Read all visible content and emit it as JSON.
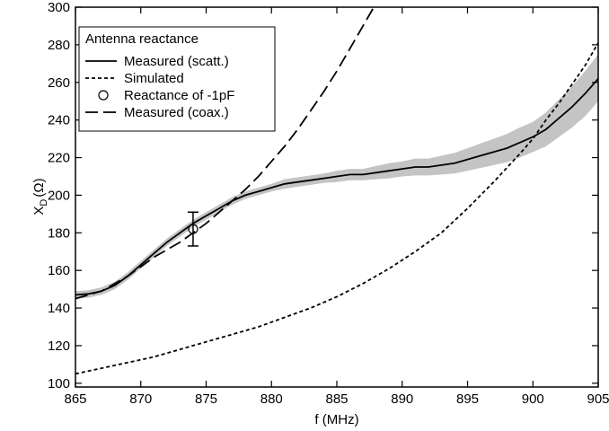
{
  "chart_data": {
    "type": "line",
    "xlabel": "f (MHz)",
    "ylabel_main": "X",
    "ylabel_sub": "D",
    "ylabel_unit": "(Ω)",
    "xlim": [
      865,
      905
    ],
    "ylim": [
      98,
      300
    ],
    "xticks": [
      865,
      870,
      875,
      880,
      885,
      890,
      895,
      900,
      905
    ],
    "yticks": [
      100,
      120,
      140,
      160,
      180,
      200,
      220,
      240,
      260,
      280,
      300
    ],
    "grid": false,
    "legend": {
      "title": "Antenna reactance",
      "placement": "top-left",
      "entries": [
        "Measured (scatt.)",
        "Simulated",
        "Reactance of -1pF",
        "Measured (coax.)"
      ]
    },
    "series": [
      {
        "name": "Measured (scatt.)",
        "style": "solid",
        "x": [
          865,
          866,
          867,
          868,
          869,
          870,
          871,
          872,
          873,
          874,
          875,
          876,
          877,
          878,
          879,
          880,
          881,
          882,
          883,
          884,
          885,
          886,
          887,
          888,
          889,
          890,
          891,
          892,
          893,
          894,
          895,
          896,
          897,
          898,
          899,
          900,
          901,
          902,
          903,
          904,
          905
        ],
        "y": [
          147,
          147.5,
          149,
          152,
          157,
          163,
          169,
          175,
          180,
          185,
          189,
          193,
          197,
          200,
          202,
          204,
          206,
          207,
          208,
          209,
          210,
          211,
          211,
          212,
          213,
          214,
          215,
          215,
          216,
          217,
          219,
          221,
          223,
          225,
          228,
          231,
          235,
          241,
          247,
          254,
          262
        ],
        "band_lower": [
          145,
          145.5,
          147,
          150,
          155,
          161,
          167,
          173,
          178,
          183,
          187,
          191,
          195,
          198,
          200,
          202,
          203.5,
          204.5,
          205.5,
          206.5,
          207,
          208,
          208,
          208.5,
          209,
          210,
          210.5,
          210.5,
          211,
          211.5,
          213,
          214.5,
          216,
          217.5,
          220,
          223,
          226,
          231,
          236,
          242,
          250
        ],
        "band_upper": [
          149,
          149.5,
          151,
          154,
          159,
          165,
          171,
          177,
          182,
          187,
          191,
          195,
          199,
          202,
          204,
          206,
          208.5,
          209.5,
          210.5,
          211.5,
          213,
          214,
          214,
          215.5,
          217,
          218,
          219.5,
          219.5,
          221,
          222.5,
          225,
          227.5,
          230,
          232.5,
          236,
          239,
          244,
          251,
          258,
          266,
          275
        ]
      },
      {
        "name": "Simulated",
        "style": "dotted",
        "x": [
          865,
          867,
          869,
          871,
          873,
          875,
          877,
          879,
          881,
          883,
          885,
          887,
          889,
          891,
          893,
          895,
          897,
          899,
          900,
          901,
          902,
          903,
          904,
          905
        ],
        "y": [
          105,
          108,
          111,
          114,
          118,
          122,
          126,
          130,
          135,
          140,
          146,
          153,
          161,
          170,
          180,
          193,
          207,
          222,
          230,
          240,
          249,
          259,
          269,
          281
        ]
      },
      {
        "name": "Measured (coax.)",
        "style": "dashed",
        "x": [
          865,
          866,
          867,
          868,
          869,
          870,
          871,
          872,
          873,
          874,
          875,
          876,
          877,
          878,
          879,
          880,
          881,
          882,
          883,
          884,
          885,
          886,
          887,
          888
        ],
        "y": [
          145,
          147,
          149,
          153,
          157,
          162,
          167,
          171,
          175,
          180,
          185,
          191,
          197,
          203,
          210,
          218,
          226,
          235,
          245,
          255,
          266,
          278,
          290,
          302
        ]
      }
    ],
    "points": [
      {
        "name": "Reactance of -1pF",
        "x": 874,
        "y": 182,
        "err_low": 173,
        "err_high": 191
      }
    ]
  }
}
